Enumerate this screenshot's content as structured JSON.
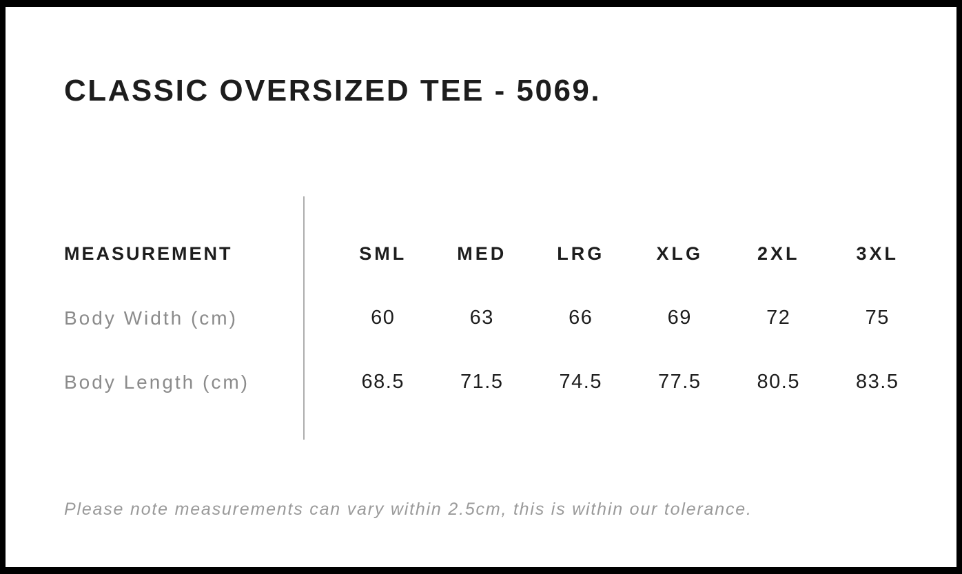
{
  "title": "CLASSIC OVERSIZED TEE - 5069.",
  "table": {
    "measurement_header": "MEASUREMENT",
    "columns": [
      "SML",
      "MED",
      "LRG",
      "XLG",
      "2XL",
      "3XL"
    ],
    "rows": [
      {
        "label": "Body Width (cm)",
        "values": [
          "60",
          "63",
          "66",
          "69",
          "72",
          "75"
        ]
      },
      {
        "label": "Body Length (cm)",
        "values": [
          "68.5",
          "71.5",
          "74.5",
          "77.5",
          "80.5",
          "83.5"
        ]
      }
    ]
  },
  "note": "Please note measurements can vary within 2.5cm, this is within our tolerance.",
  "colors": {
    "frame": "#000000",
    "text": "#1d1d1d",
    "muted_label": "#8b8b8b",
    "note_text": "#9a9a9a",
    "divider": "#aeaeae"
  }
}
